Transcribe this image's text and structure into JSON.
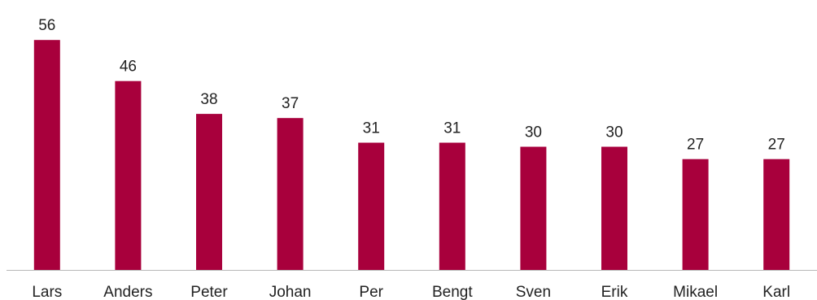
{
  "chart_data": {
    "type": "bar",
    "title": "",
    "xlabel": "",
    "ylabel": "",
    "categories": [
      "Lars",
      "Anders",
      "Peter",
      "Johan",
      "Per",
      "Bengt",
      "Sven",
      "Erik",
      "Mikael",
      "Karl"
    ],
    "values": [
      56,
      46,
      38,
      37,
      31,
      31,
      30,
      30,
      27,
      27
    ],
    "ylim": [
      0,
      60
    ],
    "grid": false,
    "legend": "none",
    "data_labels": true,
    "colors": {
      "bar": "#a8003c",
      "axis": "#b8b8b8",
      "text": "#222222"
    }
  }
}
